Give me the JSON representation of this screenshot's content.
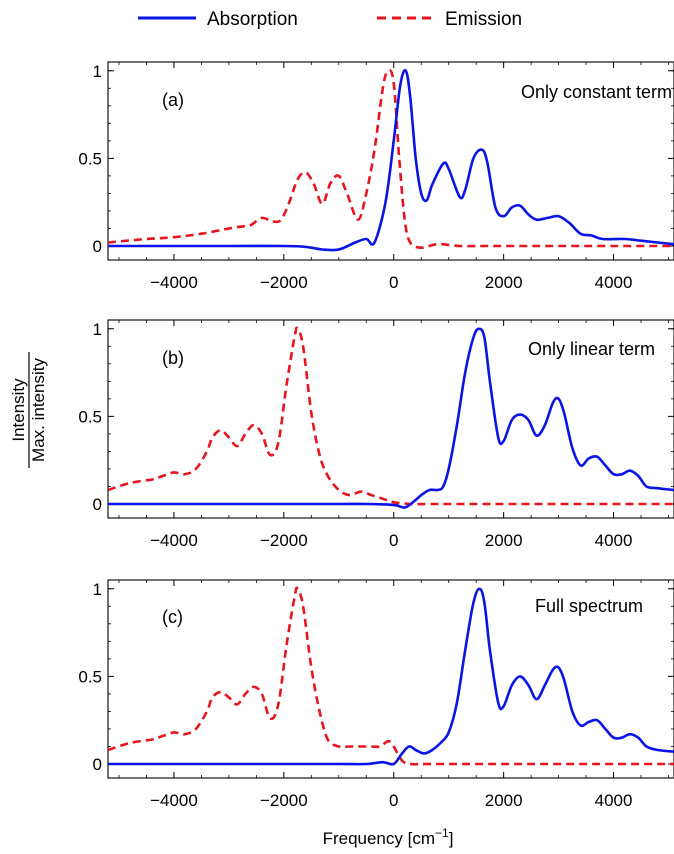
{
  "legend": {
    "absorption_label": "Absorption",
    "emission_label": "Emission"
  },
  "ylabel_numerator": "Intensity",
  "ylabel_denominator": "Max. intensity",
  "xlabel_text": "Frequency [cm",
  "xlabel_sup": "−1",
  "xlabel_close": "]",
  "colors": {
    "absorption": "#0a14e6",
    "emission": "#e8141e"
  },
  "chart_data": [
    {
      "type": "line",
      "panel_label": "(a)",
      "title": "Only constant term",
      "xlabel": "Frequency [cm−1]",
      "ylabel": "Intensity / Max. intensity",
      "xlim": [
        -5200,
        5100
      ],
      "ylim": [
        -0.08,
        1.05
      ],
      "xticks": [
        "−4000",
        "−2000",
        "0",
        "2000",
        "4000"
      ],
      "yticks": [
        "0",
        "0.5",
        "1"
      ],
      "series": [
        {
          "name": "Absorption",
          "style": "solid",
          "points": [
            [
              -5200,
              0
            ],
            [
              -4000,
              0
            ],
            [
              -3000,
              0
            ],
            [
              -2000,
              0
            ],
            [
              -1600,
              -0.005
            ],
            [
              -1300,
              -0.02
            ],
            [
              -1000,
              -0.02
            ],
            [
              -700,
              0.02
            ],
            [
              -500,
              0.04
            ],
            [
              -350,
              0.02
            ],
            [
              -150,
              0.25
            ],
            [
              0,
              0.6
            ],
            [
              120,
              0.92
            ],
            [
              220,
              1.0
            ],
            [
              300,
              0.85
            ],
            [
              400,
              0.5
            ],
            [
              500,
              0.3
            ],
            [
              600,
              0.26
            ],
            [
              700,
              0.35
            ],
            [
              900,
              0.47
            ],
            [
              1000,
              0.44
            ],
            [
              1200,
              0.28
            ],
            [
              1300,
              0.32
            ],
            [
              1450,
              0.5
            ],
            [
              1600,
              0.55
            ],
            [
              1700,
              0.48
            ],
            [
              1850,
              0.22
            ],
            [
              2000,
              0.17
            ],
            [
              2150,
              0.22
            ],
            [
              2300,
              0.23
            ],
            [
              2450,
              0.18
            ],
            [
              2600,
              0.15
            ],
            [
              2800,
              0.16
            ],
            [
              3000,
              0.17
            ],
            [
              3200,
              0.13
            ],
            [
              3400,
              0.07
            ],
            [
              3600,
              0.06
            ],
            [
              3800,
              0.04
            ],
            [
              4200,
              0.04
            ],
            [
              4500,
              0.03
            ],
            [
              4800,
              0.02
            ],
            [
              5100,
              0.01
            ]
          ]
        },
        {
          "name": "Emission",
          "style": "dashed",
          "points": [
            [
              -5200,
              0.02
            ],
            [
              -4500,
              0.04
            ],
            [
              -4000,
              0.05
            ],
            [
              -3500,
              0.07
            ],
            [
              -3000,
              0.1
            ],
            [
              -2800,
              0.11
            ],
            [
              -2600,
              0.12
            ],
            [
              -2400,
              0.16
            ],
            [
              -2200,
              0.14
            ],
            [
              -2050,
              0.15
            ],
            [
              -1900,
              0.25
            ],
            [
              -1750,
              0.38
            ],
            [
              -1600,
              0.42
            ],
            [
              -1450,
              0.35
            ],
            [
              -1300,
              0.24
            ],
            [
              -1150,
              0.36
            ],
            [
              -1000,
              0.4
            ],
            [
              -850,
              0.3
            ],
            [
              -650,
              0.15
            ],
            [
              -500,
              0.3
            ],
            [
              -350,
              0.55
            ],
            [
              -200,
              0.9
            ],
            [
              -100,
              1.0
            ],
            [
              0,
              0.93
            ],
            [
              100,
              0.5
            ],
            [
              200,
              0.15
            ],
            [
              300,
              0.02
            ],
            [
              500,
              -0.01
            ],
            [
              800,
              0.01
            ],
            [
              1200,
              0.0
            ],
            [
              1600,
              0.0
            ],
            [
              2000,
              0.0
            ],
            [
              2500,
              0.0
            ],
            [
              3000,
              0.0
            ],
            [
              4000,
              0.0
            ],
            [
              5100,
              0.0
            ]
          ]
        }
      ]
    },
    {
      "type": "line",
      "panel_label": "(b)",
      "title": "Only linear term",
      "xlabel": "Frequency [cm−1]",
      "ylabel": "Intensity / Max. intensity",
      "xlim": [
        -5200,
        5100
      ],
      "ylim": [
        -0.08,
        1.05
      ],
      "xticks": [
        "−4000",
        "−2000",
        "0",
        "2000",
        "4000"
      ],
      "yticks": [
        "0",
        "0.5",
        "1"
      ],
      "series": [
        {
          "name": "Absorption",
          "style": "solid",
          "points": [
            [
              -5200,
              0
            ],
            [
              -4000,
              0
            ],
            [
              -3000,
              0
            ],
            [
              -2000,
              0
            ],
            [
              -1000,
              0
            ],
            [
              -500,
              0
            ],
            [
              0,
              -0.005
            ],
            [
              200,
              -0.02
            ],
            [
              350,
              0.01
            ],
            [
              500,
              0.05
            ],
            [
              650,
              0.08
            ],
            [
              800,
              0.08
            ],
            [
              900,
              0.1
            ],
            [
              1000,
              0.2
            ],
            [
              1150,
              0.45
            ],
            [
              1300,
              0.75
            ],
            [
              1450,
              0.95
            ],
            [
              1550,
              1.0
            ],
            [
              1650,
              0.95
            ],
            [
              1750,
              0.7
            ],
            [
              1900,
              0.38
            ],
            [
              2000,
              0.36
            ],
            [
              2150,
              0.48
            ],
            [
              2300,
              0.51
            ],
            [
              2450,
              0.48
            ],
            [
              2600,
              0.39
            ],
            [
              2750,
              0.45
            ],
            [
              2900,
              0.58
            ],
            [
              3000,
              0.6
            ],
            [
              3100,
              0.52
            ],
            [
              3250,
              0.32
            ],
            [
              3400,
              0.22
            ],
            [
              3550,
              0.26
            ],
            [
              3700,
              0.27
            ],
            [
              3850,
              0.22
            ],
            [
              4000,
              0.17
            ],
            [
              4150,
              0.17
            ],
            [
              4300,
              0.19
            ],
            [
              4450,
              0.16
            ],
            [
              4600,
              0.1
            ],
            [
              4800,
              0.09
            ],
            [
              5100,
              0.08
            ]
          ]
        },
        {
          "name": "Emission",
          "style": "dashed",
          "points": [
            [
              -5200,
              0.08
            ],
            [
              -4800,
              0.12
            ],
            [
              -4400,
              0.14
            ],
            [
              -4200,
              0.16
            ],
            [
              -4000,
              0.18
            ],
            [
              -3800,
              0.17
            ],
            [
              -3600,
              0.2
            ],
            [
              -3400,
              0.3
            ],
            [
              -3300,
              0.38
            ],
            [
              -3150,
              0.42
            ],
            [
              -3000,
              0.38
            ],
            [
              -2850,
              0.33
            ],
            [
              -2700,
              0.4
            ],
            [
              -2550,
              0.45
            ],
            [
              -2400,
              0.4
            ],
            [
              -2250,
              0.28
            ],
            [
              -2100,
              0.35
            ],
            [
              -1950,
              0.68
            ],
            [
              -1800,
              0.96
            ],
            [
              -1750,
              1.0
            ],
            [
              -1650,
              0.9
            ],
            [
              -1500,
              0.52
            ],
            [
              -1350,
              0.28
            ],
            [
              -1200,
              0.16
            ],
            [
              -1000,
              0.08
            ],
            [
              -800,
              0.05
            ],
            [
              -600,
              0.07
            ],
            [
              -400,
              0.05
            ],
            [
              -200,
              0.03
            ],
            [
              0,
              0.01
            ],
            [
              300,
              0.0
            ],
            [
              600,
              0.0
            ],
            [
              1000,
              0.0
            ],
            [
              2000,
              0.0
            ],
            [
              3000,
              0.0
            ],
            [
              4000,
              0.0
            ],
            [
              5100,
              0.0
            ]
          ]
        }
      ]
    },
    {
      "type": "line",
      "panel_label": "(c)",
      "title": "Full spectrum",
      "xlabel": "Frequency [cm−1]",
      "ylabel": "Intensity / Max. intensity",
      "xlim": [
        -5200,
        5100
      ],
      "ylim": [
        -0.08,
        1.05
      ],
      "xticks": [
        "−4000",
        "−2000",
        "0",
        "2000",
        "4000"
      ],
      "yticks": [
        "0",
        "0.5",
        "1"
      ],
      "series": [
        {
          "name": "Absorption",
          "style": "solid",
          "points": [
            [
              -5200,
              0
            ],
            [
              -4000,
              0
            ],
            [
              -3000,
              0
            ],
            [
              -2000,
              0
            ],
            [
              -1000,
              0
            ],
            [
              -500,
              0.0
            ],
            [
              -200,
              0.01
            ],
            [
              0,
              0.0
            ],
            [
              150,
              0.06
            ],
            [
              280,
              0.1
            ],
            [
              400,
              0.08
            ],
            [
              550,
              0.06
            ],
            [
              700,
              0.08
            ],
            [
              850,
              0.12
            ],
            [
              1000,
              0.18
            ],
            [
              1150,
              0.35
            ],
            [
              1300,
              0.65
            ],
            [
              1450,
              0.92
            ],
            [
              1560,
              1.0
            ],
            [
              1650,
              0.92
            ],
            [
              1750,
              0.65
            ],
            [
              1900,
              0.35
            ],
            [
              2000,
              0.33
            ],
            [
              2150,
              0.45
            ],
            [
              2300,
              0.5
            ],
            [
              2450,
              0.45
            ],
            [
              2600,
              0.37
            ],
            [
              2750,
              0.45
            ],
            [
              2900,
              0.54
            ],
            [
              3000,
              0.55
            ],
            [
              3100,
              0.48
            ],
            [
              3250,
              0.3
            ],
            [
              3400,
              0.22
            ],
            [
              3550,
              0.24
            ],
            [
              3700,
              0.25
            ],
            [
              3850,
              0.2
            ],
            [
              4000,
              0.15
            ],
            [
              4150,
              0.15
            ],
            [
              4300,
              0.17
            ],
            [
              4450,
              0.15
            ],
            [
              4600,
              0.1
            ],
            [
              4800,
              0.08
            ],
            [
              5100,
              0.07
            ]
          ]
        },
        {
          "name": "Emission",
          "style": "dashed",
          "points": [
            [
              -5200,
              0.08
            ],
            [
              -4800,
              0.12
            ],
            [
              -4400,
              0.14
            ],
            [
              -4200,
              0.16
            ],
            [
              -4000,
              0.18
            ],
            [
              -3800,
              0.17
            ],
            [
              -3600,
              0.2
            ],
            [
              -3400,
              0.3
            ],
            [
              -3300,
              0.38
            ],
            [
              -3150,
              0.41
            ],
            [
              -3000,
              0.38
            ],
            [
              -2850,
              0.34
            ],
            [
              -2700,
              0.4
            ],
            [
              -2550,
              0.44
            ],
            [
              -2400,
              0.4
            ],
            [
              -2250,
              0.26
            ],
            [
              -2100,
              0.34
            ],
            [
              -1950,
              0.68
            ],
            [
              -1800,
              0.96
            ],
            [
              -1750,
              1.0
            ],
            [
              -1650,
              0.9
            ],
            [
              -1500,
              0.55
            ],
            [
              -1350,
              0.3
            ],
            [
              -1200,
              0.14
            ],
            [
              -1000,
              0.1
            ],
            [
              -800,
              0.1
            ],
            [
              -600,
              0.1
            ],
            [
              -400,
              0.1
            ],
            [
              -250,
              0.1
            ],
            [
              -100,
              0.13
            ],
            [
              0,
              0.1
            ],
            [
              150,
              0.02
            ],
            [
              300,
              0.0
            ],
            [
              600,
              0.0
            ],
            [
              1000,
              0.0
            ],
            [
              2000,
              0.0
            ],
            [
              3000,
              0.0
            ],
            [
              4000,
              0.0
            ],
            [
              5100,
              0.0
            ]
          ]
        }
      ]
    }
  ]
}
